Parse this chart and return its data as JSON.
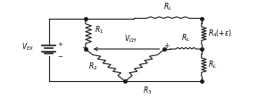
{
  "line_color": "#1a1a1a",
  "lw": 0.8,
  "fig_w": 2.98,
  "fig_h": 1.1,
  "dpi": 100,
  "vex_label": "$V_{EX}$",
  "vch_label": "$V_{CH}$",
  "r4_label": "$R_4(+\\varepsilon)$",
  "r1_label": "$R_1$",
  "r2_label": "$R_2$",
  "r3_label": "$R_3$",
  "rl_label": "$R_L$",
  "nodes": {
    "xL": 0.18,
    "xTL": 0.32,
    "xMID_L": 0.32,
    "xMID_R": 0.62,
    "xTR": 0.76,
    "xBOT": 0.47,
    "yTOP": 0.88,
    "yMID": 0.5,
    "yBOT": 0.1
  }
}
